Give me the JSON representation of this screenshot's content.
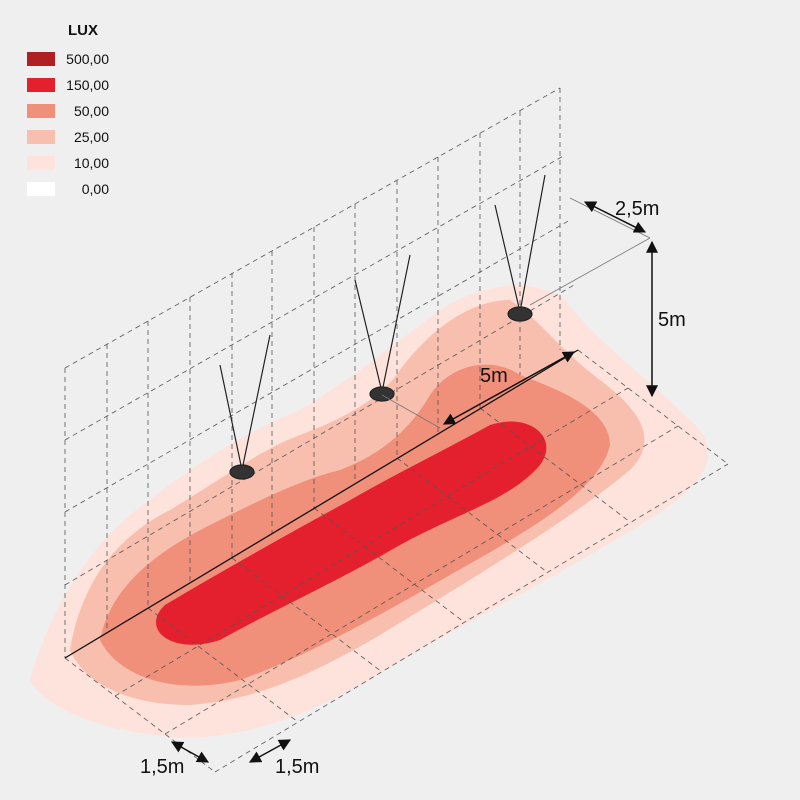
{
  "legend": {
    "title": "LUX",
    "items": [
      {
        "label": "500,00",
        "color": "#b01f24"
      },
      {
        "label": "150,00",
        "color": "#e5202e"
      },
      {
        "label": "50,00",
        "color": "#f08f7a"
      },
      {
        "label": "25,00",
        "color": "#f8bfae"
      },
      {
        "label": "10,00",
        "color": "#fde3db"
      },
      {
        "label": "0,00",
        "color": "#ffffff"
      }
    ]
  },
  "dimensions": {
    "depth": "2,5m",
    "height": "5m",
    "spacing": "5m",
    "offset_left": "1,5m",
    "offset_right": "1,5m"
  }
}
